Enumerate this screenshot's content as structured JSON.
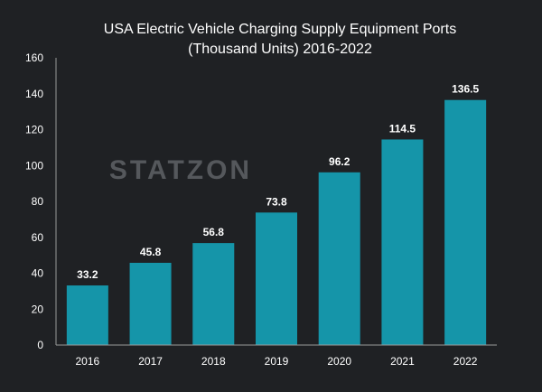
{
  "chart_data": {
    "type": "bar",
    "title_lines": [
      "USA Electric Vehicle Charging Supply Equipment Ports",
      "(Thousand Units) 2016-2022"
    ],
    "categories": [
      "2016",
      "2017",
      "2018",
      "2019",
      "2020",
      "2021",
      "2022"
    ],
    "values": [
      33.2,
      45.8,
      56.8,
      73.8,
      96.2,
      114.5,
      136.5
    ],
    "value_labels": [
      "33.2",
      "45.8",
      "56.8",
      "73.8",
      "96.2",
      "114.5",
      "136.5"
    ],
    "ylim": [
      0,
      160
    ],
    "yticks": [
      "0",
      "20",
      "40",
      "60",
      "80",
      "100",
      "120",
      "140",
      "160"
    ],
    "grid": false,
    "bar_color": "#1595a9",
    "xlabel": "",
    "ylabel": ""
  },
  "watermark": "STATZON",
  "colors": {
    "background": "#1f2124",
    "text": "#ffffff",
    "axis": "#9a9a9a"
  }
}
